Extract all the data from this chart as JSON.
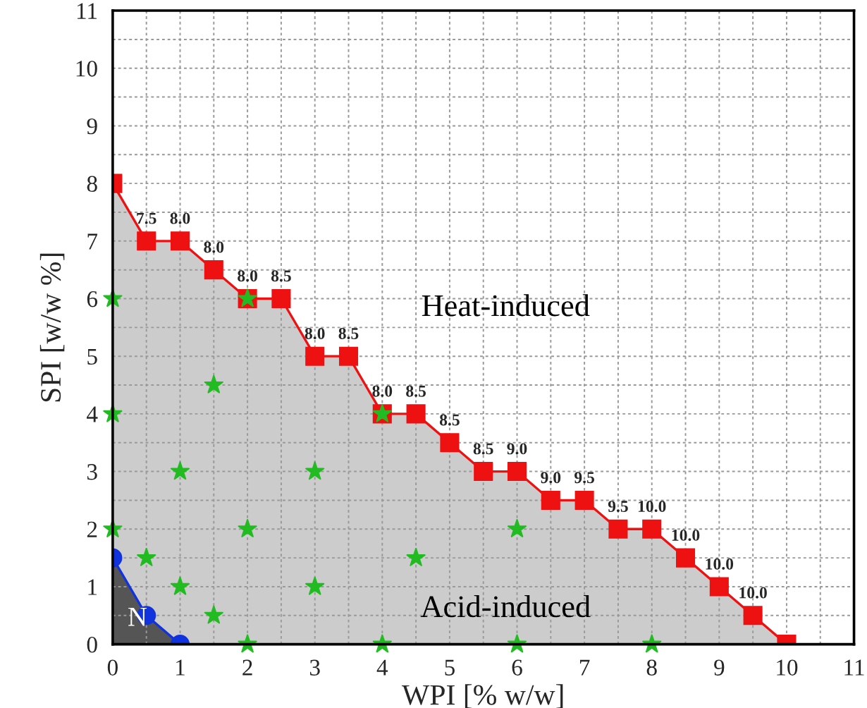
{
  "chart_data": {
    "type": "area",
    "xlabel": "WPI [% w/w]",
    "ylabel": "SPI [w/w %]",
    "xlim": [
      0,
      11
    ],
    "ylim": [
      0,
      11
    ],
    "xticks": [
      0,
      1,
      2,
      3,
      4,
      5,
      6,
      7,
      8,
      9,
      10,
      11
    ],
    "yticks": [
      0,
      1,
      2,
      3,
      4,
      5,
      6,
      7,
      8,
      9,
      10,
      11
    ],
    "grid": true,
    "series": [
      {
        "color": "#ee1111",
        "marker": "square",
        "x": [
          0,
          0.5,
          1,
          1.5,
          2,
          2.5,
          3,
          3.5,
          4,
          4.5,
          5,
          5.5,
          6,
          6.5,
          7,
          7.5,
          8,
          8.5,
          9,
          9.5,
          10
        ],
        "values": [
          8,
          7,
          7,
          6.5,
          6,
          6,
          5,
          5,
          4,
          4,
          3.5,
          3,
          3,
          2.5,
          2.5,
          2,
          2,
          1.5,
          1,
          0.5,
          0
        ]
      },
      {
        "type": "area",
        "color": "#1133dd",
        "marker": "circle",
        "x": [
          0,
          0.5,
          1
        ],
        "values": [
          1.5,
          0.5,
          0
        ]
      },
      {
        "type": "scatter",
        "color": "#22bb22",
        "marker": "star",
        "x": [
          0,
          0,
          0,
          1.5,
          1,
          3,
          2,
          0.5,
          1,
          3,
          1.5,
          2,
          4,
          4.5,
          6,
          6,
          8,
          2,
          4
        ],
        "values": [
          6,
          4,
          2,
          4.5,
          3,
          3,
          2,
          1.5,
          1,
          1,
          0.5,
          0,
          0,
          1.5,
          2,
          0,
          0,
          6,
          4
        ]
      }
    ],
    "annotations": [
      "Heat-induced",
      "Acid-induced",
      "N",
      {
        "text": "7.5",
        "x": 0.5,
        "y": 7
      },
      {
        "text": "8.0",
        "x": 1,
        "y": 7
      },
      {
        "text": "8.0",
        "x": 1.5,
        "y": 6.5
      },
      {
        "text": "8.0",
        "x": 2,
        "y": 6
      },
      {
        "text": "8.5",
        "x": 2.5,
        "y": 6
      },
      {
        "text": "8.0",
        "x": 3,
        "y": 5
      },
      {
        "text": "8.5",
        "x": 3.5,
        "y": 5
      },
      {
        "text": "8.0",
        "x": 4,
        "y": 4
      },
      {
        "text": "8.5",
        "x": 4.5,
        "y": 4
      },
      {
        "text": "8.5",
        "x": 5,
        "y": 3.5
      },
      {
        "text": "8.5",
        "x": 5.5,
        "y": 3
      },
      {
        "text": "9.0",
        "x": 6,
        "y": 3
      },
      {
        "text": "9.0",
        "x": 6.5,
        "y": 2.5
      },
      {
        "text": "9.5",
        "x": 7,
        "y": 2.5
      },
      {
        "text": "9.5",
        "x": 7.5,
        "y": 2
      },
      {
        "text": "10.0",
        "x": 8,
        "y": 2
      },
      {
        "text": "10.0",
        "x": 8.5,
        "y": 1.5
      },
      {
        "text": "10.0",
        "x": 9,
        "y": 1
      },
      {
        "text": "10.0",
        "x": 9.5,
        "y": 0.5
      }
    ]
  }
}
